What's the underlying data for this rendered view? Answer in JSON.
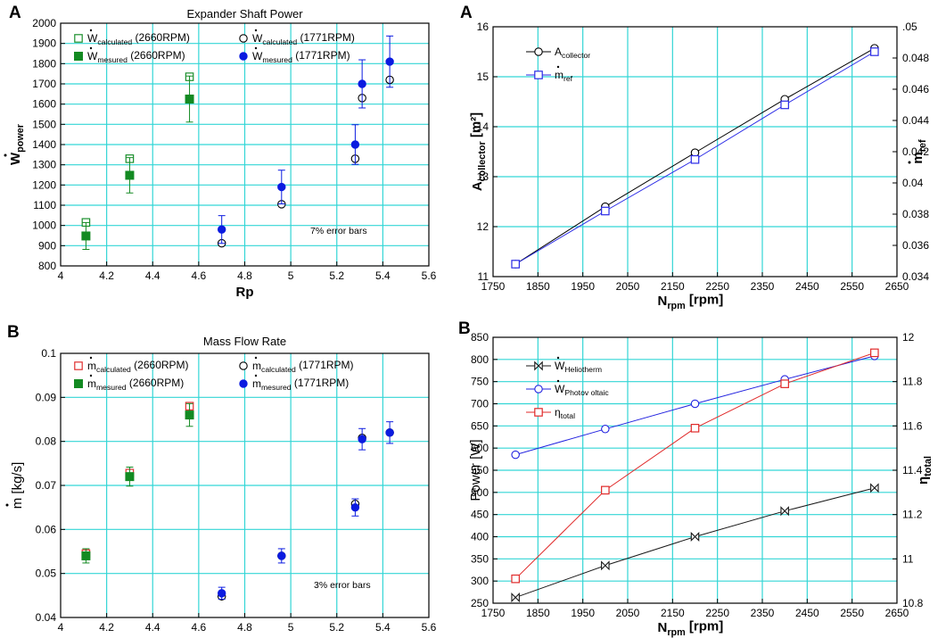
{
  "chart_data": [
    {
      "id": "tl",
      "panel_letter": "A",
      "type": "scatter",
      "title": "Expander Shaft Power",
      "xlabel": "Rp",
      "ylabel_main": "W",
      "ylabel_sub": "power",
      "xlim": [
        4,
        5.6
      ],
      "ylim": [
        800,
        2000
      ],
      "xticks": [
        "4",
        "4.2",
        "4.4",
        "4.6",
        "4.8",
        "5",
        "5.2",
        "5.4",
        "5.6"
      ],
      "yticks": [
        "800",
        "900",
        "1000",
        "1100",
        "1200",
        "1300",
        "1400",
        "1500",
        "1600",
        "1700",
        "1800",
        "1900",
        "2000"
      ],
      "note": "7% error bars",
      "series": [
        {
          "name": "Wcalculated (2660RPM)",
          "main": "W",
          "sub": "calculated",
          "suffix": " (2660RPM)",
          "marker": "square-open",
          "color": "#1a8f2c",
          "x": [
            4.11,
            4.3,
            4.56
          ],
          "y": [
            1015,
            1330,
            1735
          ],
          "err_pct": 0
        },
        {
          "name": "Wcalculated (1771RPM)",
          "main": "W",
          "sub": "calculated",
          "suffix": " (1771RPM)",
          "marker": "circle-open",
          "color": "#000000",
          "x": [
            4.7,
            4.96,
            5.28,
            5.31,
            5.43
          ],
          "y": [
            912,
            1105,
            1330,
            1630,
            1720
          ],
          "err_pct": 0
        },
        {
          "name": "Wmesured (2660RPM)",
          "main": "W",
          "sub": "mesured",
          "suffix": " (2660RPM)",
          "marker": "square-filled",
          "color": "#138a22",
          "x": [
            4.11,
            4.3,
            4.56
          ],
          "y": [
            948,
            1248,
            1625
          ],
          "err_pct": 0.07
        },
        {
          "name": "Wmesured (1771RPM)",
          "main": "W",
          "sub": "mesured",
          "suffix": " (1771RPM)",
          "marker": "circle-filled",
          "color": "#0b1be0",
          "x": [
            4.7,
            4.96,
            5.28,
            5.31,
            5.43
          ],
          "y": [
            980,
            1190,
            1400,
            1700,
            1810
          ],
          "err_pct": 0.07
        }
      ]
    },
    {
      "id": "bl",
      "panel_letter": "B",
      "type": "scatter",
      "title": "Mass Flow Rate",
      "xlabel": "Rp",
      "ylabel_main": "m",
      "ylabel_sub": "",
      "ylabel_suffix": " [kg/s]",
      "xlim": [
        4,
        5.6
      ],
      "ylim": [
        0.04,
        0.1
      ],
      "xticks": [
        "4",
        "4.2",
        "4.4",
        "4.6",
        "4.8",
        "5",
        "5.2",
        "5.4",
        "5.6"
      ],
      "yticks": [
        "0.04",
        "0.05",
        "0.06",
        "0.07",
        "0.08",
        "0.09",
        "0.1"
      ],
      "note": "3% error bars",
      "series": [
        {
          "name": "mcalculated (2660RPM)",
          "main": "m",
          "sub": "calculated",
          "suffix": " (2660RPM)",
          "marker": "square-open",
          "color": "#e03030",
          "x": [
            4.11,
            4.3,
            4.56
          ],
          "y": [
            0.0545,
            0.0728,
            0.088
          ],
          "err_pct": 0
        },
        {
          "name": "mcalculated (1771RPM)",
          "main": "m",
          "sub": "calculated",
          "suffix": " (1771RPM)",
          "marker": "circle-open",
          "color": "#000000",
          "x": [
            4.7,
            4.96,
            5.28,
            5.31,
            5.43
          ],
          "y": [
            0.0448,
            0.054,
            0.0658,
            0.0808,
            0.082
          ],
          "err_pct": 0
        },
        {
          "name": "mmesured (2660RPM)",
          "main": "m",
          "sub": "mesured",
          "suffix": " (2660RPM)",
          "marker": "square-filled",
          "color": "#138a22",
          "x": [
            4.11,
            4.3,
            4.56
          ],
          "y": [
            0.054,
            0.072,
            0.086
          ],
          "err_pct": 0.03
        },
        {
          "name": "mmesured (1771RPM)",
          "main": "m",
          "sub": "mesured",
          "suffix": " (1771RPM)",
          "marker": "circle-filled",
          "color": "#0b1be0",
          "x": [
            4.7,
            4.96,
            5.28,
            5.31,
            5.43
          ],
          "y": [
            0.0455,
            0.054,
            0.065,
            0.0805,
            0.082
          ],
          "err_pct": 0.03
        }
      ]
    },
    {
      "id": "tr",
      "panel_letter": "A",
      "type": "line",
      "title": "",
      "xlabel_main": "N",
      "xlabel_sub": "rpm",
      "xlabel_suffix": "  [rpm]",
      "ylabel_main": "A",
      "ylabel_sub": "collector",
      "ylabel_suffix": " [m²]",
      "y2label_main": "m",
      "y2label_sub": "ref",
      "xlim": [
        1750,
        2650
      ],
      "ylim": [
        11,
        16
      ],
      "y2lim": [
        0.034,
        0.05
      ],
      "xticks": [
        "1750",
        "1850",
        "1950",
        "2050",
        "2150",
        "2250",
        "2350",
        "2450",
        "2550",
        "2650"
      ],
      "yticks": [
        "11",
        "12",
        "13",
        "14",
        "15",
        "16"
      ],
      "y2ticks": [
        "0.034",
        "0.036",
        "0.038",
        "0.04",
        "0.042",
        "0.044",
        "0.046",
        "0.048",
        ".05"
      ],
      "x": [
        1800,
        2000,
        2200,
        2400,
        2600
      ],
      "series": [
        {
          "name": "Acollector",
          "main": "A",
          "sub": "collector",
          "marker": "circle-open",
          "color": "#000000",
          "axis": "left",
          "values": [
            11.25,
            12.4,
            13.48,
            14.55,
            15.57
          ]
        },
        {
          "name": "mref",
          "main": "m",
          "sub": "ref",
          "marker": "square-open",
          "color": "#2a2ae6",
          "axis": "right",
          "values": [
            0.0348,
            0.0382,
            0.0415,
            0.045,
            0.0484
          ]
        }
      ]
    },
    {
      "id": "br",
      "panel_letter": "B",
      "type": "line",
      "title": "",
      "xlabel_main": "N",
      "xlabel_sub": "rpm",
      "xlabel_suffix": "  [rpm]",
      "ylabel_main": "Power [W]",
      "ylabel_sub": "",
      "y2label_main": "η",
      "y2label_sub": "total",
      "xlim": [
        1750,
        2650
      ],
      "ylim": [
        250,
        850
      ],
      "y2lim": [
        10.8,
        12
      ],
      "xticks": [
        "1750",
        "1850",
        "1950",
        "2050",
        "2150",
        "2250",
        "2350",
        "2450",
        "2550",
        "2650"
      ],
      "yticks": [
        "250",
        "300",
        "350",
        "400",
        "450",
        "500",
        "550",
        "600",
        "650",
        "700",
        "750",
        "800",
        "850"
      ],
      "y2ticks": [
        "10.8",
        "11",
        "11.2",
        "11.4",
        "11.6",
        "11.8",
        "12"
      ],
      "x": [
        1800,
        2000,
        2200,
        2400,
        2600
      ],
      "series": [
        {
          "name": "WHeliotherm",
          "main": "W",
          "sub": "Heliotherm",
          "marker": "bowtie",
          "color": "#1a1a1a",
          "axis": "left",
          "values": [
            263,
            335,
            400,
            458,
            510
          ]
        },
        {
          "name": "WPhotovoltaic",
          "main": "W",
          "sub": "Photov oltaic",
          "marker": "circle-open",
          "color": "#2323e0",
          "axis": "left",
          "values": [
            585,
            643,
            700,
            755,
            808
          ]
        },
        {
          "name": "ηtotal",
          "main": "η",
          "sub": "total",
          "marker": "square-open",
          "color": "#e02a2a",
          "axis": "right",
          "values": [
            10.91,
            11.31,
            11.59,
            11.79,
            11.93
          ]
        }
      ]
    }
  ]
}
